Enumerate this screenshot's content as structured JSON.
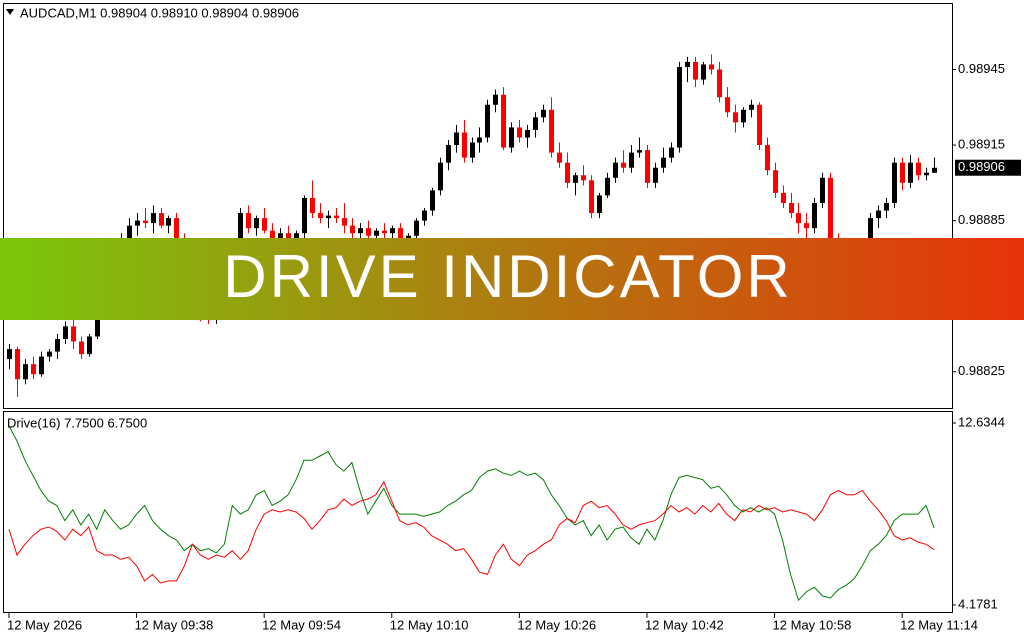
{
  "chart_data": [
    {
      "type": "candlestick",
      "title": "AUDCAD,M1  0.98904 0.98910 0.98904 0.98906",
      "open": [
        0.9883,
        0.98834,
        0.98822,
        0.98828,
        0.98824,
        0.98831,
        0.98833,
        0.98838,
        0.98843,
        0.98837,
        0.98832,
        0.98839,
        0.9885,
        0.9886,
        0.9887,
        0.98878,
        0.98883,
        0.98885,
        0.98884,
        0.98888,
        0.98883,
        0.98886,
        0.98878,
        0.9887,
        0.9886,
        0.9885,
        0.98846,
        0.9885,
        0.9886,
        0.98874,
        0.98888,
        0.98882,
        0.98886,
        0.98881,
        0.98878,
        0.9888,
        0.98877,
        0.9888,
        0.98894,
        0.98888,
        0.98886,
        0.98887,
        0.98886,
        0.98883,
        0.9888,
        0.98882,
        0.98879,
        0.98881,
        0.9888,
        0.98882,
        0.98878,
        0.98879,
        0.98885,
        0.98889,
        0.98897,
        0.98908,
        0.98915,
        0.9892,
        0.9891,
        0.98916,
        0.98918,
        0.98931,
        0.98935,
        0.98914,
        0.98922,
        0.98918,
        0.98921,
        0.98926,
        0.98929,
        0.98912,
        0.98908,
        0.989,
        0.98903,
        0.98901,
        0.98888,
        0.98895,
        0.98902,
        0.98908,
        0.98906,
        0.98912,
        0.98913,
        0.989,
        0.98906,
        0.9891,
        0.98914,
        0.98946,
        0.98948,
        0.98941,
        0.98947,
        0.98945,
        0.98934,
        0.98928,
        0.98924,
        0.98929,
        0.98931,
        0.98915,
        0.98905,
        0.98896,
        0.98892,
        0.98888,
        0.98884,
        0.98882,
        0.98892,
        0.98902,
        0.98878,
        0.98872,
        0.98862,
        0.98868,
        0.98876,
        0.98886,
        0.98889,
        0.98892,
        0.98908,
        0.989,
        0.98908,
        0.98903,
        0.98904
      ],
      "high": [
        0.98836,
        0.98835,
        0.9883,
        0.98831,
        0.98833,
        0.98834,
        0.9884,
        0.98845,
        0.98848,
        0.98839,
        0.9884,
        0.98852,
        0.98862,
        0.98872,
        0.9888,
        0.98886,
        0.98888,
        0.9889,
        0.98891,
        0.9889,
        0.98887,
        0.98888,
        0.9888,
        0.98872,
        0.98864,
        0.98854,
        0.98852,
        0.98862,
        0.98876,
        0.9889,
        0.98891,
        0.98887,
        0.9889,
        0.98884,
        0.98882,
        0.98883,
        0.98881,
        0.98895,
        0.98901,
        0.98892,
        0.98889,
        0.9889,
        0.98892,
        0.98886,
        0.98884,
        0.98885,
        0.98882,
        0.98884,
        0.98883,
        0.98884,
        0.9888,
        0.98886,
        0.9889,
        0.98898,
        0.9891,
        0.98917,
        0.98923,
        0.98925,
        0.98918,
        0.98922,
        0.98933,
        0.98937,
        0.98938,
        0.98924,
        0.98925,
        0.98923,
        0.98928,
        0.98931,
        0.98934,
        0.98916,
        0.98912,
        0.98904,
        0.98907,
        0.98903,
        0.98896,
        0.98904,
        0.9891,
        0.98913,
        0.98915,
        0.98918,
        0.98915,
        0.98908,
        0.98914,
        0.98916,
        0.98948,
        0.9895,
        0.9895,
        0.98948,
        0.98951,
        0.98948,
        0.98938,
        0.98931,
        0.9893,
        0.98933,
        0.98932,
        0.98918,
        0.98908,
        0.98899,
        0.98896,
        0.98892,
        0.98888,
        0.98894,
        0.98904,
        0.98904,
        0.9888,
        0.98876,
        0.9887,
        0.98878,
        0.98888,
        0.98891,
        0.98894,
        0.9891,
        0.9891,
        0.98911,
        0.9891,
        0.98906,
        0.9891
      ],
      "low": [
        0.98826,
        0.98815,
        0.9882,
        0.98822,
        0.98823,
        0.98829,
        0.9883,
        0.98836,
        0.98834,
        0.9883,
        0.98831,
        0.98838,
        0.98848,
        0.98858,
        0.98866,
        0.98875,
        0.98879,
        0.98882,
        0.9888,
        0.98882,
        0.9888,
        0.98876,
        0.98868,
        0.98858,
        0.98845,
        0.98844,
        0.98844,
        0.98848,
        0.98858,
        0.98872,
        0.9888,
        0.98879,
        0.9888,
        0.98876,
        0.98875,
        0.98876,
        0.98874,
        0.98878,
        0.98886,
        0.98884,
        0.98882,
        0.98884,
        0.9888,
        0.98878,
        0.98876,
        0.98878,
        0.98875,
        0.98878,
        0.98876,
        0.98877,
        0.98874,
        0.98877,
        0.98883,
        0.98887,
        0.98895,
        0.98905,
        0.98912,
        0.98908,
        0.98908,
        0.98912,
        0.98916,
        0.98928,
        0.98913,
        0.98912,
        0.98916,
        0.98914,
        0.98918,
        0.98924,
        0.9891,
        0.98906,
        0.98898,
        0.98895,
        0.98899,
        0.98886,
        0.98886,
        0.98894,
        0.989,
        0.98904,
        0.98904,
        0.9891,
        0.98898,
        0.98898,
        0.98904,
        0.98908,
        0.98912,
        0.9894,
        0.98938,
        0.98939,
        0.98943,
        0.98932,
        0.98926,
        0.9892,
        0.98922,
        0.98926,
        0.98913,
        0.98903,
        0.98894,
        0.9889,
        0.98886,
        0.9888,
        0.98878,
        0.9888,
        0.9889,
        0.98876,
        0.9887,
        0.9886,
        0.98858,
        0.98866,
        0.98874,
        0.98882,
        0.98886,
        0.9889,
        0.98897,
        0.98898,
        0.98901,
        0.98901,
        0.98904
      ],
      "close": [
        0.98834,
        0.98822,
        0.98828,
        0.98824,
        0.98831,
        0.98833,
        0.98838,
        0.98843,
        0.98837,
        0.98832,
        0.98839,
        0.9885,
        0.9886,
        0.9887,
        0.98878,
        0.98883,
        0.98885,
        0.98884,
        0.98888,
        0.98883,
        0.98886,
        0.98878,
        0.9887,
        0.9886,
        0.9885,
        0.98846,
        0.9885,
        0.9886,
        0.98874,
        0.98888,
        0.98882,
        0.98886,
        0.98881,
        0.98878,
        0.9888,
        0.98877,
        0.9888,
        0.98894,
        0.98888,
        0.98886,
        0.98887,
        0.98886,
        0.98883,
        0.9888,
        0.98882,
        0.98879,
        0.98881,
        0.9888,
        0.98882,
        0.98878,
        0.98879,
        0.98885,
        0.98889,
        0.98897,
        0.98908,
        0.98915,
        0.9892,
        0.9891,
        0.98916,
        0.98918,
        0.98931,
        0.98935,
        0.98914,
        0.98922,
        0.98918,
        0.98921,
        0.98926,
        0.98929,
        0.98912,
        0.98908,
        0.989,
        0.98903,
        0.98901,
        0.98888,
        0.98895,
        0.98902,
        0.98908,
        0.98906,
        0.98912,
        0.98913,
        0.989,
        0.98906,
        0.9891,
        0.98914,
        0.98946,
        0.98948,
        0.98941,
        0.98947,
        0.98945,
        0.98934,
        0.98928,
        0.98924,
        0.98929,
        0.98931,
        0.98915,
        0.98905,
        0.98896,
        0.98892,
        0.98888,
        0.98884,
        0.98882,
        0.98892,
        0.98902,
        0.98878,
        0.98872,
        0.98862,
        0.98868,
        0.98876,
        0.98886,
        0.98889,
        0.98892,
        0.98908,
        0.989,
        0.98908,
        0.98903,
        0.98904,
        0.98906
      ],
      "up_color": "#000000",
      "down_color": "#ff0000",
      "xlim": [
        -0.75,
        118.25
      ],
      "ylim": [
        0.988106,
        0.989714
      ],
      "yticks": [
        0.98945,
        0.98915,
        0.98885,
        0.98855,
        0.98825
      ],
      "current_price": 0.98906
    },
    {
      "type": "line",
      "title": "Drive(16) 7.7500 6.7500",
      "series": [
        {
          "color": "#008000",
          "values": [
            12.5,
            11.8,
            10.9,
            10.2,
            9.5,
            9.0,
            8.8,
            8.1,
            8.6,
            7.9,
            8.4,
            7.7,
            8.6,
            8.1,
            7.7,
            7.9,
            8.4,
            8.8,
            8.1,
            7.7,
            7.4,
            7.2,
            6.7,
            7.0,
            6.7,
            6.8,
            6.6,
            7.0,
            8.8,
            8.4,
            8.6,
            9.3,
            9.5,
            8.8,
            9.0,
            9.3,
            10.0,
            10.9,
            10.9,
            11.1,
            11.3,
            10.7,
            10.4,
            10.8,
            9.5,
            8.4,
            9.0,
            9.6,
            8.8,
            8.4,
            8.4,
            8.4,
            8.3,
            8.4,
            8.5,
            8.8,
            9.0,
            9.3,
            9.5,
            10.1,
            10.4,
            10.5,
            10.3,
            10.2,
            10.4,
            10.2,
            10.3,
            10.0,
            9.3,
            8.8,
            8.2,
            7.9,
            8.1,
            7.4,
            7.9,
            7.2,
            7.7,
            7.8,
            7.3,
            7.0,
            7.7,
            7.2,
            8.1,
            9.3,
            10.1,
            10.2,
            10.1,
            10.0,
            9.6,
            9.7,
            9.3,
            8.8,
            8.5,
            8.7,
            8.5,
            8.7,
            8.4,
            7.2,
            5.6,
            4.4,
            4.8,
            5.0,
            4.6,
            4.5,
            4.9,
            5.1,
            5.4,
            6.0,
            6.7,
            7.0,
            7.4,
            8.1,
            8.4,
            8.4,
            8.4,
            8.8,
            7.75
          ]
        },
        {
          "color": "#ff0000",
          "values": [
            7.7,
            6.5,
            7.0,
            7.4,
            7.7,
            7.8,
            7.6,
            7.2,
            7.7,
            7.4,
            7.8,
            6.7,
            6.5,
            6.5,
            6.3,
            6.4,
            6.0,
            5.3,
            5.6,
            5.2,
            5.3,
            5.3,
            6.0,
            7.0,
            6.5,
            6.3,
            6.5,
            6.4,
            6.7,
            6.3,
            6.7,
            7.7,
            8.4,
            8.6,
            8.5,
            8.6,
            8.5,
            8.2,
            7.7,
            8.1,
            8.6,
            8.7,
            9.1,
            8.8,
            9.0,
            9.1,
            9.3,
            9.9,
            9.0,
            8.1,
            7.9,
            8.0,
            7.8,
            7.4,
            7.2,
            7.0,
            6.7,
            6.8,
            6.3,
            5.7,
            5.6,
            6.5,
            7.0,
            6.3,
            6.0,
            6.5,
            6.7,
            7.0,
            7.2,
            7.9,
            8.2,
            8.0,
            8.8,
            9.0,
            8.7,
            8.8,
            8.4,
            7.9,
            7.7,
            7.9,
            8.0,
            8.1,
            8.4,
            8.8,
            8.5,
            8.7,
            8.4,
            8.8,
            8.5,
            8.9,
            8.4,
            8.1,
            8.6,
            8.5,
            8.8,
            8.6,
            8.7,
            8.5,
            8.6,
            8.5,
            8.4,
            8.1,
            8.6,
            9.3,
            9.5,
            9.3,
            9.3,
            9.5,
            9.0,
            8.6,
            8.1,
            7.4,
            7.2,
            7.3,
            7.1,
            7.0,
            6.75
          ]
        }
      ],
      "xlim": [
        -0.75,
        118.25
      ],
      "xticks": [
        {
          "value": 0,
          "label": "12 May 2026"
        },
        {
          "value": 16,
          "label": "12 May 09:38"
        },
        {
          "value": 32,
          "label": "12 May 09:54"
        },
        {
          "value": 48,
          "label": "12 May 10:10"
        },
        {
          "value": 64,
          "label": "12 May 10:26"
        },
        {
          "value": 80,
          "label": "12 May 10:42"
        },
        {
          "value": 96,
          "label": "12 May 10:58"
        },
        {
          "value": 112,
          "label": "12 May 11:14"
        }
      ],
      "ylim": [
        4.1781,
        12.6344
      ],
      "yticks": [
        12.6344,
        4.1781
      ]
    }
  ],
  "banner": {
    "text": "DRIVE INDICATOR"
  }
}
